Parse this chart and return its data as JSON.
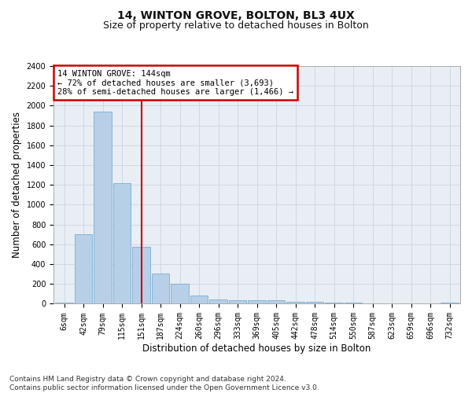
{
  "title": "14, WINTON GROVE, BOLTON, BL3 4UX",
  "subtitle": "Size of property relative to detached houses in Bolton",
  "xlabel": "Distribution of detached houses by size in Bolton",
  "ylabel": "Number of detached properties",
  "categories": [
    "6sqm",
    "42sqm",
    "79sqm",
    "115sqm",
    "151sqm",
    "187sqm",
    "224sqm",
    "260sqm",
    "296sqm",
    "333sqm",
    "369sqm",
    "405sqm",
    "442sqm",
    "478sqm",
    "514sqm",
    "550sqm",
    "587sqm",
    "623sqm",
    "659sqm",
    "696sqm",
    "732sqm"
  ],
  "values": [
    15,
    700,
    1940,
    1220,
    575,
    305,
    200,
    80,
    45,
    38,
    35,
    32,
    22,
    18,
    10,
    8,
    5,
    3,
    2,
    2,
    15
  ],
  "bar_color": "#b8cfe8",
  "bar_edge_color": "#7aadd4",
  "annotation_text": "14 WINTON GROVE: 144sqm\n← 72% of detached houses are smaller (3,693)\n28% of semi-detached houses are larger (1,466) →",
  "annotation_box_color": "#ffffff",
  "annotation_box_edge": "#cc0000",
  "vline_x_index": 4,
  "vline_color": "#cc0000",
  "footer": "Contains HM Land Registry data © Crown copyright and database right 2024.\nContains public sector information licensed under the Open Government Licence v3.0.",
  "ylim": [
    0,
    2400
  ],
  "yticks": [
    0,
    200,
    400,
    600,
    800,
    1000,
    1200,
    1400,
    1600,
    1800,
    2000,
    2200,
    2400
  ],
  "grid_color": "#d0d8e0",
  "bg_color": "#e8eef4",
  "title_fontsize": 10,
  "subtitle_fontsize": 9,
  "axis_label_fontsize": 8.5,
  "tick_fontsize": 7,
  "annotation_fontsize": 7.5,
  "footer_fontsize": 6.5
}
